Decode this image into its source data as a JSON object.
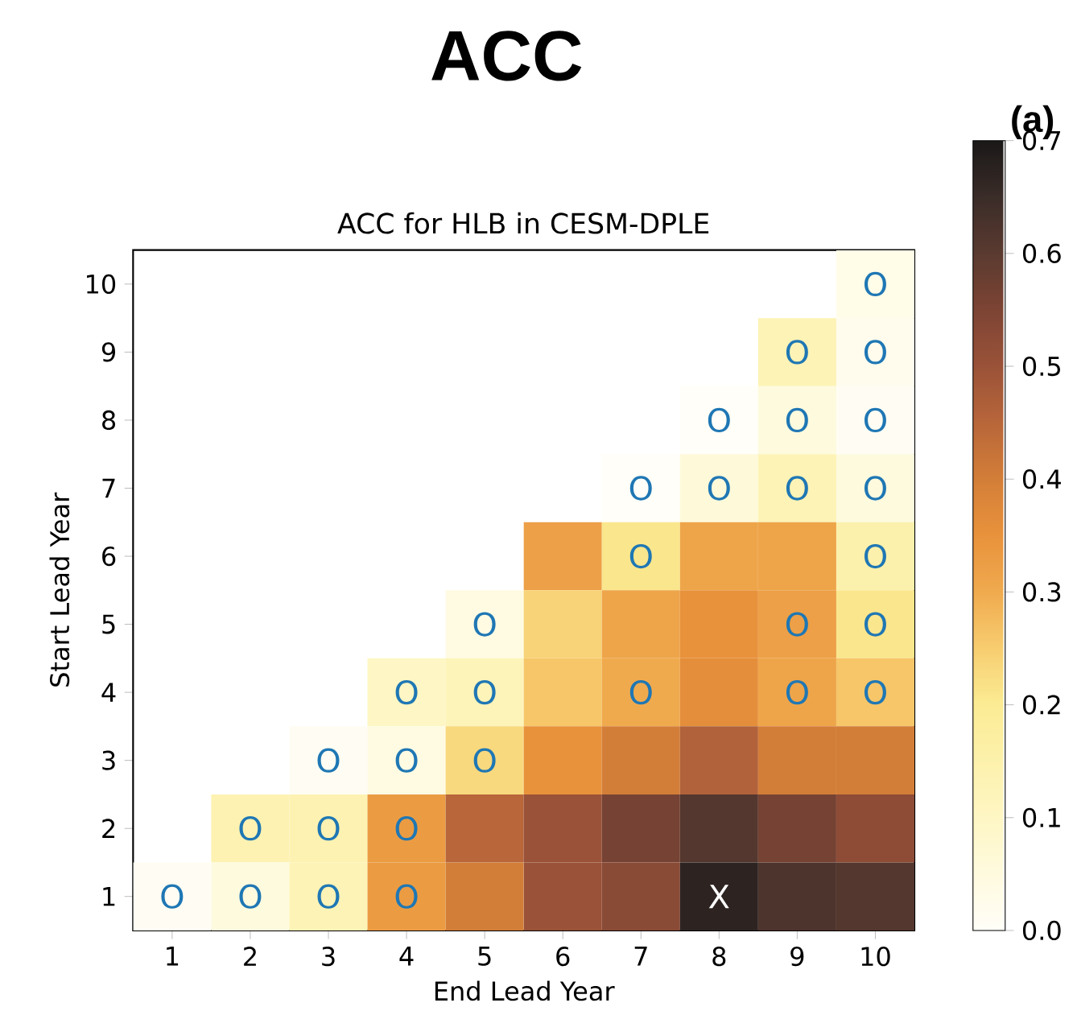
{
  "chart_data": {
    "type": "heatmap",
    "title": "ACC",
    "subtitle": "ACC for HLB in CESM-DPLE",
    "xlabel": "End Lead Year",
    "ylabel": "Start Lead Year",
    "annotations": [
      "(a)"
    ],
    "categories": [
      "1",
      "2",
      "3",
      "4",
      "5",
      "6",
      "7",
      "8",
      "9",
      "10"
    ],
    "y_categories": [
      "10",
      "9",
      "8",
      "7",
      "6",
      "5",
      "4",
      "3",
      "2",
      "1"
    ],
    "cells": [
      [
        null,
        null,
        null,
        null,
        null,
        null,
        null,
        null,
        null,
        0.03
      ],
      [
        null,
        null,
        null,
        null,
        null,
        null,
        null,
        null,
        0.13,
        0.02
      ],
      [
        null,
        null,
        null,
        null,
        null,
        null,
        null,
        0.0,
        0.05,
        0.01
      ],
      [
        null,
        null,
        null,
        null,
        null,
        null,
        0.0,
        0.06,
        0.13,
        0.05
      ],
      [
        null,
        null,
        null,
        null,
        null,
        0.32,
        0.21,
        0.31,
        0.31,
        0.15
      ],
      [
        null,
        null,
        null,
        null,
        0.04,
        0.24,
        0.31,
        0.35,
        0.32,
        0.21
      ],
      [
        null,
        null,
        null,
        0.1,
        0.12,
        0.26,
        0.3,
        0.36,
        0.31,
        0.26
      ],
      [
        null,
        null,
        0.01,
        0.04,
        0.23,
        0.35,
        0.4,
        0.46,
        0.4,
        0.4
      ],
      [
        null,
        0.14,
        0.14,
        0.33,
        0.45,
        0.5,
        0.56,
        0.61,
        0.56,
        0.52
      ],
      [
        0.01,
        0.05,
        0.13,
        0.33,
        0.4,
        0.5,
        0.53,
        0.67,
        0.62,
        0.61
      ]
    ],
    "cell_labels": [
      [
        null,
        null,
        null,
        null,
        null,
        null,
        null,
        null,
        null,
        "O"
      ],
      [
        null,
        null,
        null,
        null,
        null,
        null,
        null,
        null,
        "O",
        "O"
      ],
      [
        null,
        null,
        null,
        null,
        null,
        null,
        null,
        "O",
        "O",
        "O"
      ],
      [
        null,
        null,
        null,
        null,
        null,
        null,
        "O",
        "O",
        "O",
        "O"
      ],
      [
        null,
        null,
        null,
        null,
        null,
        null,
        "O",
        null,
        null,
        "O"
      ],
      [
        null,
        null,
        null,
        null,
        "O",
        null,
        null,
        null,
        "O",
        "O"
      ],
      [
        null,
        null,
        null,
        "O",
        "O",
        null,
        "O",
        null,
        "O",
        "O"
      ],
      [
        null,
        null,
        "O",
        "O",
        "O",
        null,
        null,
        null,
        null,
        null
      ],
      [
        null,
        "O",
        "O",
        "O",
        null,
        null,
        null,
        null,
        null,
        null
      ],
      [
        "O",
        "O",
        "O",
        "O",
        null,
        null,
        null,
        "X",
        null,
        null
      ]
    ],
    "clim": [
      0,
      0.7
    ],
    "cticks": [
      {
        "value": 0,
        "label": "0.0"
      },
      0.1,
      0.2,
      0.3,
      0.4,
      0.5,
      0.6,
      0.7
    ]
  }
}
